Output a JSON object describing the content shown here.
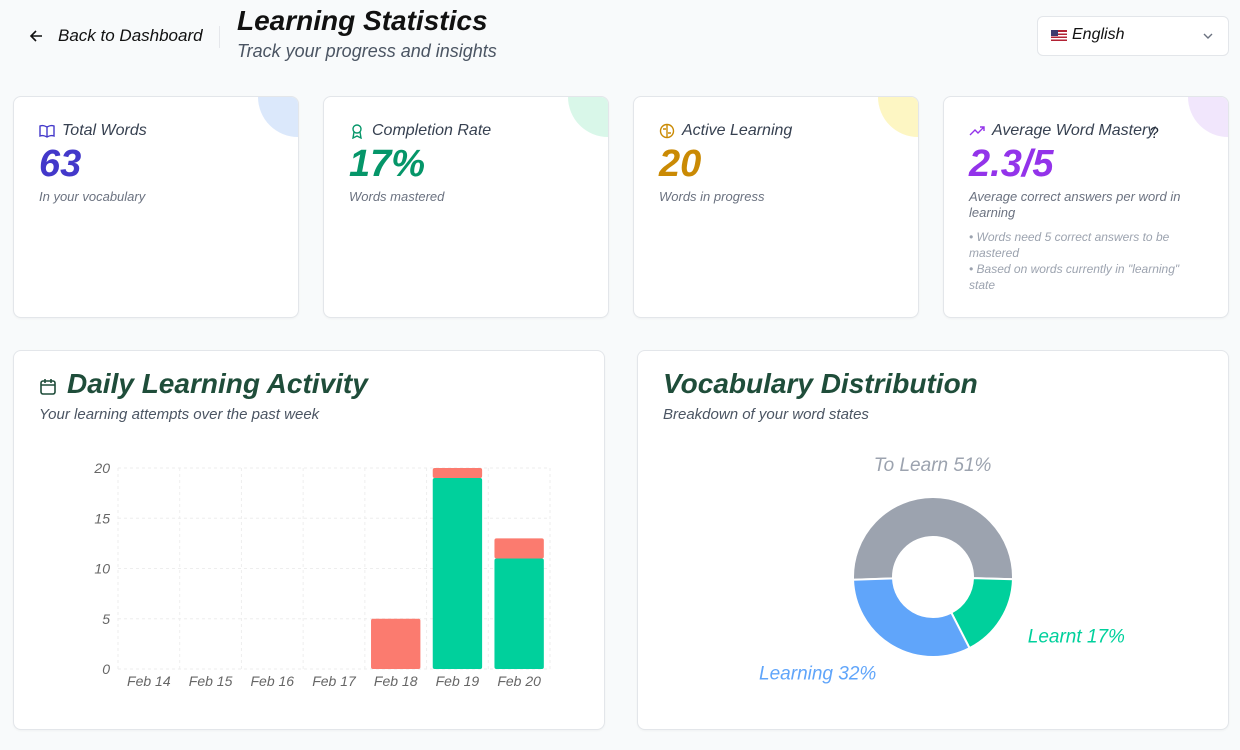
{
  "header": {
    "back": "Back to Dashboard",
    "title": "Learning Statistics",
    "subtitle": "Track your progress and insights",
    "language": "English"
  },
  "stats": [
    {
      "label": "Total Words",
      "value": "63",
      "caption": "In your vocabulary",
      "color": "#4338ca",
      "accent": "#dbe8fb"
    },
    {
      "label": "Completion Rate",
      "value": "17%",
      "caption": "Words mastered",
      "color": "#059669",
      "accent": "#d9f7e9"
    },
    {
      "label": "Active Learning",
      "value": "20",
      "caption": "Words in progress",
      "color": "#ca8a04",
      "accent": "#fdf6c3"
    },
    {
      "label": "Average Word Mastery",
      "value": "2.3/5",
      "caption": "Average correct answers per word in learning",
      "color": "#9333ea",
      "accent": "#f1e6fc",
      "notes": [
        "• Words need 5 correct answers to be mastered",
        "• Based on words currently in \"learning\" state"
      ]
    }
  ],
  "charts": [
    {
      "type": "bar",
      "stacked": true,
      "title": "Daily Learning Activity",
      "subtitle": "Your learning attempts over the past week",
      "categories": [
        "Feb 14",
        "Feb 15",
        "Feb 16",
        "Feb 17",
        "Feb 18",
        "Feb 19",
        "Feb 20"
      ],
      "series": [
        {
          "color": "#00d09c",
          "values": [
            0,
            0,
            0,
            0,
            0,
            19,
            11
          ]
        },
        {
          "color": "#fb7b6f",
          "values": [
            0,
            0,
            0,
            0,
            5,
            1,
            2
          ]
        }
      ],
      "ylim": [
        0,
        20
      ],
      "yticks": [
        0,
        5,
        10,
        15,
        20
      ],
      "grid": true
    },
    {
      "type": "pie",
      "donut": true,
      "title": "Vocabulary Distribution",
      "subtitle": "Breakdown of your word states",
      "categories": [
        "To Learn",
        "Learnt",
        "Learning"
      ],
      "values": [
        51,
        17,
        32
      ],
      "value_labels": [
        "51%",
        "17%",
        "32%"
      ],
      "colors": [
        "#9ca3af",
        "#00d09c",
        "#60a5fa"
      ]
    }
  ]
}
